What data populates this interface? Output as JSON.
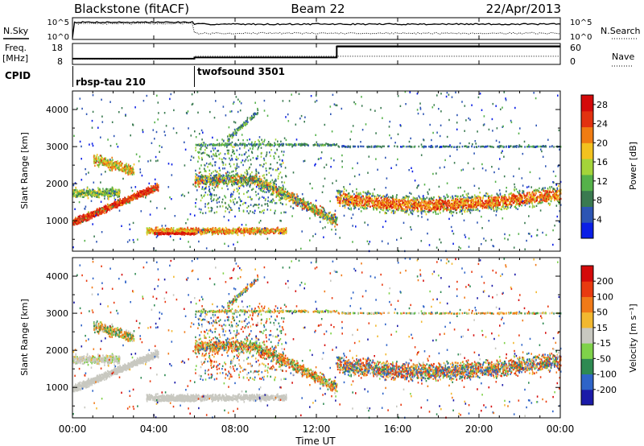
{
  "header": {
    "station": "Blackstone (fitACF)",
    "beam": "Beam 22",
    "date": "22/Apr/2013"
  },
  "strips": {
    "nsky_label": "N.Sky",
    "nsearch_label": "N.Search",
    "freq_label_1": "Freq.",
    "freq_label_2": "[MHz]",
    "nave_label": "Nave",
    "cpid_label": "CPID",
    "noise_ticks_left": [
      "10^5",
      "10^0"
    ],
    "noise_ticks_right": [
      "10^5",
      "10^0"
    ],
    "freq_ticks": [
      "18",
      "8"
    ],
    "nave_ticks": [
      "60",
      "0"
    ]
  },
  "cpid_segments": [
    {
      "label": "rbsp-tau 210",
      "start_hour": 0
    },
    {
      "label": "twofsound 3501",
      "start_hour": 6
    }
  ],
  "time_ticks": [
    "00:00",
    "04:00",
    "08:00",
    "12:00",
    "16:00",
    "20:00",
    "00:00"
  ],
  "xlabel": "Time UT",
  "range_panels": [
    {
      "ylabel": "Slant Range [km]",
      "yticks": [
        "1000",
        "2000",
        "3000",
        "4000"
      ],
      "colorbar_label": "Power [dB]",
      "colorbar_ticks": [
        "4",
        "8",
        "12",
        "16",
        "20",
        "24",
        "28"
      ],
      "colorbar_colors": [
        "#0a1ee6",
        "#2d55b4",
        "#3a7a50",
        "#55b14a",
        "#a4d43a",
        "#f3c21f",
        "#f07c12",
        "#e23210",
        "#d40a0a"
      ]
    },
    {
      "ylabel": "Slant Range [km]",
      "yticks": [
        "1000",
        "2000",
        "3000",
        "4000"
      ],
      "colorbar_label": "Velocity [m s⁻¹]",
      "colorbar_ticks": [
        "200",
        "100",
        "50",
        "15",
        "-15",
        "-50",
        "-100",
        "-200"
      ],
      "colorbar_colors": [
        "#1a1aa8",
        "#2f64c8",
        "#2e8a52",
        "#7fd24a",
        "#c8c8c0",
        "#f2b830",
        "#f07a18",
        "#e83a10",
        "#d40a0a"
      ]
    }
  ],
  "chart_data": [
    {
      "type": "line",
      "title": "Blackstone (fitACF)",
      "series": [
        {
          "name": "N.Sky"
        },
        {
          "name": "N.Search"
        }
      ],
      "x_range_hours": [
        0,
        24
      ],
      "ylim_log10": [
        0,
        5
      ]
    },
    {
      "type": "line",
      "series": [
        {
          "name": "Freq.",
          "x": [
            0,
            6,
            6,
            13,
            13,
            24
          ],
          "values": [
            10.3,
            10.3,
            11.0,
            11.0,
            17.2,
            17.2
          ]
        },
        {
          "name": "Nave"
        }
      ],
      "ylim": [
        8,
        18
      ],
      "ylim_right": [
        0,
        60
      ]
    },
    {
      "type": "heatmap",
      "ylabel": "Slant Range [km]",
      "xlabel": "Time UT",
      "x_range_hours": [
        0,
        24
      ],
      "y_range_km": [
        180,
        4500
      ],
      "colorbar": {
        "label": "Power [dB]",
        "range": [
          0,
          30
        ],
        "ticks": [
          4,
          8,
          12,
          16,
          20,
          24,
          28
        ]
      }
    },
    {
      "type": "heatmap",
      "ylabel": "Slant Range [km]",
      "xlabel": "Time UT",
      "x_range_hours": [
        0,
        24
      ],
      "y_range_km": [
        180,
        4500
      ],
      "colorbar": {
        "label": "Velocity [m s⁻¹]",
        "range": [
          -250,
          250
        ],
        "ticks": [
          200,
          100,
          50,
          15,
          -15,
          -50,
          -100,
          -200
        ]
      }
    }
  ]
}
